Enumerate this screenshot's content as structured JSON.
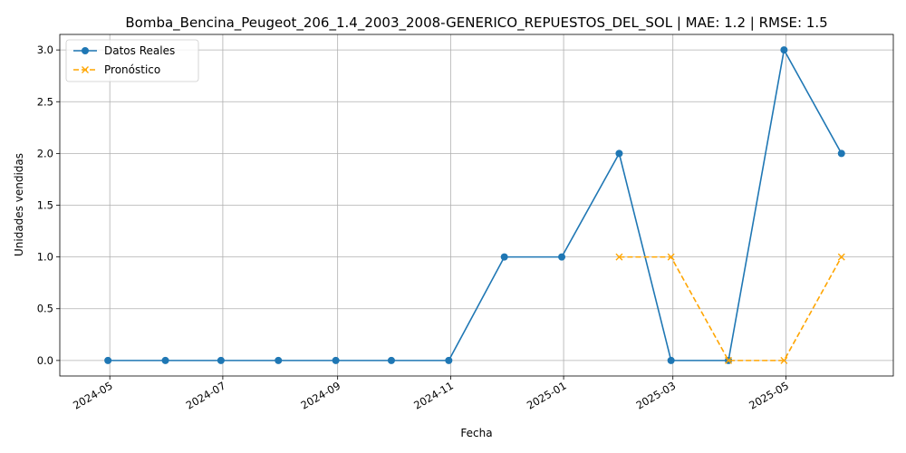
{
  "chart_data": {
    "type": "line",
    "title": "Bomba_Bencina_Peugeot_206_1.4_2003_2008-GENERICO_REPUESTOS_DEL_SOL | MAE: 1.2 | RMSE: 1.5",
    "xlabel": "Fecha",
    "ylabel": "Unidades vendidas",
    "xlim": [
      "2024-04-04",
      "2025-06-28"
    ],
    "ylim": [
      -0.15,
      3.15
    ],
    "x_ticks": [
      "2024-05",
      "2024-07",
      "2024-09",
      "2024-11",
      "2025-01",
      "2025-03",
      "2025-05"
    ],
    "y_ticks": [
      "0.0",
      "0.5",
      "1.0",
      "1.5",
      "2.0",
      "2.5",
      "3.0"
    ],
    "grid": true,
    "legend_position": "top-left",
    "series": [
      {
        "name": "Datos Reales",
        "color": "#1f77b4",
        "marker": "circle",
        "line_style": "solid",
        "x": [
          "2024-04-30",
          "2024-05-31",
          "2024-06-30",
          "2024-07-31",
          "2024-08-31",
          "2024-09-30",
          "2024-10-31",
          "2024-11-30",
          "2024-12-31",
          "2025-01-31",
          "2025-02-28",
          "2025-03-31",
          "2025-04-30",
          "2025-05-31"
        ],
        "values": [
          0,
          0,
          0,
          0,
          0,
          0,
          0,
          1,
          1,
          2,
          0,
          0,
          3,
          2
        ]
      },
      {
        "name": "Pronóstico",
        "color": "#ffa500",
        "marker": "x",
        "line_style": "dashed",
        "x": [
          "2025-01-31",
          "2025-02-28",
          "2025-03-31",
          "2025-04-30",
          "2025-05-31"
        ],
        "values": [
          1,
          1,
          0,
          0,
          1
        ]
      }
    ]
  }
}
